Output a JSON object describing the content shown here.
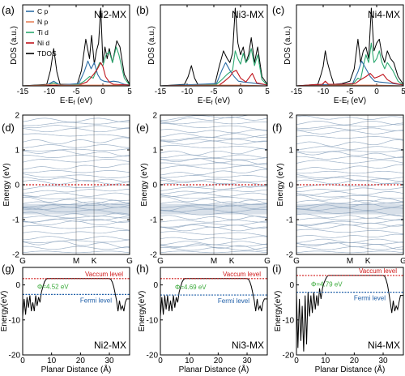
{
  "colors": {
    "c_p": "#2e6ea6",
    "n_p": "#e8825a",
    "ti_d": "#2ca870",
    "ni_d": "#c0141c",
    "tdos": "#000000",
    "bands": "#8ea6bf",
    "fermi_line": "#d01818",
    "vacuum": "#d01818",
    "phi": "#3aaa3a",
    "fermi_level": "#1f5fa8"
  },
  "chart_data": [
    {
      "panel": "(a)",
      "type": "line",
      "title": "Ni2-MX",
      "xlabel": "E-Ef (eV)",
      "ylabel": "DOS (a.u.)",
      "xlim": [
        -15,
        5
      ],
      "xticks": [
        -15,
        -10,
        -5,
        0,
        5
      ],
      "ylim": [
        0,
        1
      ],
      "legend": [
        "C p",
        "N p",
        "Ti d",
        "Ni d",
        "TDOS"
      ],
      "series": [
        {
          "name": "TDOS",
          "x": [
            -15,
            -10.5,
            -9.8,
            -9.2,
            -8.6,
            -8,
            -4.8,
            -4,
            -3.2,
            -2.5,
            -2.1,
            -1.6,
            -1.2,
            -0.8,
            -0.4,
            0,
            0.4,
            0.8,
            1.2,
            1.8,
            2.6,
            3.2,
            4,
            5
          ],
          "y": [
            0,
            0.02,
            0.2,
            0.48,
            0.18,
            0.02,
            0.02,
            0.2,
            0.6,
            0.35,
            0.65,
            0.28,
            0.45,
            0.55,
            1.0,
            0.3,
            0.5,
            0.35,
            0.48,
            0.3,
            0.58,
            0.5,
            0.15,
            0.02
          ]
        },
        {
          "name": "Ti d",
          "x": [
            -15,
            -10.5,
            -9.2,
            -8,
            -4.5,
            -3.5,
            -2.5,
            -1.8,
            -1.2,
            -0.6,
            0,
            0.6,
            1.2,
            1.8,
            2.5,
            3,
            4,
            5
          ],
          "y": [
            0,
            0.01,
            0.04,
            0.01,
            0.02,
            0.06,
            0.12,
            0.1,
            0.2,
            0.3,
            0.26,
            0.4,
            0.44,
            0.3,
            0.5,
            0.4,
            0.1,
            0.01
          ]
        },
        {
          "name": "C p",
          "x": [
            -15,
            -10.5,
            -9.2,
            -8,
            -4.5,
            -3.5,
            -2.8,
            -2.2,
            -1.6,
            -1,
            -0.4,
            0.2,
            1,
            2,
            3,
            4,
            5
          ],
          "y": [
            0,
            0.01,
            0.06,
            0.01,
            0.03,
            0.18,
            0.32,
            0.22,
            0.3,
            0.15,
            0.08,
            0.06,
            0.05,
            0.06,
            0.05,
            0.02,
            0.01
          ]
        },
        {
          "name": "Ni d",
          "x": [
            -15,
            -4.5,
            -3,
            -2.3,
            -1.6,
            -1,
            -0.4,
            0,
            0.5,
            1.2,
            2,
            5
          ],
          "y": [
            0,
            0.01,
            0.05,
            0.1,
            0.16,
            0.22,
            0.3,
            0.25,
            0.12,
            0.05,
            0.02,
            0.01
          ]
        },
        {
          "name": "N p",
          "x": [
            -15,
            -11,
            -9.2,
            -8,
            -4,
            -2,
            0,
            2,
            5
          ],
          "y": [
            0,
            0.01,
            0.02,
            0.01,
            0.01,
            0.01,
            0.01,
            0.01,
            0
          ]
        }
      ]
    },
    {
      "panel": "(b)",
      "type": "line",
      "title": "Ni3-MX",
      "xlabel": "E-Ef (eV)",
      "ylabel": "DOS (a.u.)",
      "xlim": [
        -15,
        5
      ],
      "xticks": [
        -15,
        -10,
        -5,
        0,
        5
      ],
      "ylim": [
        0,
        1
      ],
      "series": [
        {
          "name": "TDOS",
          "x": [
            -15,
            -10.5,
            -9.8,
            -9.2,
            -8.6,
            -8,
            -4.8,
            -4,
            -3.2,
            -2.5,
            -2,
            -1.5,
            -1,
            -0.5,
            0,
            0.5,
            1,
            1.5,
            2,
            2.6,
            3.2,
            4,
            5
          ],
          "y": [
            0,
            0.02,
            0.12,
            0.26,
            0.1,
            0.02,
            0.02,
            0.25,
            0.45,
            0.35,
            0.3,
            0.42,
            1.0,
            0.55,
            0.4,
            0.5,
            0.3,
            0.4,
            0.62,
            0.3,
            0.5,
            0.12,
            0.02
          ]
        },
        {
          "name": "Ti d",
          "x": [
            -15,
            -4.5,
            -3.5,
            -2.5,
            -1.5,
            -1,
            -0.5,
            0,
            0.5,
            1,
            1.5,
            2,
            2.6,
            3.2,
            4,
            5
          ],
          "y": [
            0,
            0.02,
            0.08,
            0.15,
            0.2,
            0.45,
            0.35,
            0.28,
            0.42,
            0.3,
            0.35,
            0.48,
            0.26,
            0.4,
            0.08,
            0.01
          ]
        },
        {
          "name": "C p",
          "x": [
            -15,
            -4.5,
            -3.5,
            -2.8,
            -2,
            -1.2,
            -0.4,
            0.5,
            2,
            5
          ],
          "y": [
            0,
            0.03,
            0.2,
            0.3,
            0.2,
            0.12,
            0.06,
            0.05,
            0.04,
            0.01
          ]
        },
        {
          "name": "Ni d",
          "x": [
            -15,
            -4,
            -3,
            -2,
            -1.4,
            -0.8,
            0,
            1,
            2.2,
            3,
            5
          ],
          "y": [
            0,
            0.01,
            0.06,
            0.12,
            0.18,
            0.2,
            0.1,
            0.05,
            0.16,
            0.04,
            0.01
          ]
        },
        {
          "name": "N p",
          "x": [
            -15,
            -4,
            0,
            5
          ],
          "y": [
            0,
            0.01,
            0.01,
            0
          ]
        }
      ]
    },
    {
      "panel": "(c)",
      "type": "line",
      "title": "Ni4-MX",
      "xlabel": "E-Ef (eV)",
      "ylabel": "DOS (a.u.)",
      "xlim": [
        -15,
        5
      ],
      "xticks": [
        -15,
        -10,
        -5,
        0,
        5
      ],
      "ylim": [
        0,
        1
      ],
      "series": [
        {
          "name": "TDOS",
          "x": [
            -15,
            -11,
            -10.4,
            -10,
            -9.6,
            -9.2,
            -8.6,
            -8,
            -6.5,
            -5,
            -4.2,
            -3.5,
            -3,
            -2.5,
            -2,
            -1.5,
            -1,
            -0.5,
            0,
            0.5,
            1,
            1.5,
            2,
            2.6,
            3.2,
            4,
            5
          ],
          "y": [
            0,
            0.02,
            0.15,
            0.25,
            0.45,
            0.3,
            0.15,
            0.02,
            0.03,
            0.06,
            0.22,
            0.6,
            0.3,
            0.45,
            0.5,
            0.35,
            1.0,
            0.45,
            0.55,
            0.6,
            0.4,
            0.3,
            0.45,
            0.35,
            0.3,
            0.12,
            0.02
          ]
        },
        {
          "name": "Ti d",
          "x": [
            -15,
            -4.5,
            -3.5,
            -3,
            -2.5,
            -2,
            -1.5,
            -1,
            -0.5,
            0,
            0.5,
            1,
            1.5,
            2,
            3,
            4,
            5
          ],
          "y": [
            0,
            0.02,
            0.1,
            0.08,
            0.25,
            0.4,
            0.3,
            0.55,
            0.3,
            0.35,
            0.45,
            0.3,
            0.22,
            0.3,
            0.2,
            0.06,
            0.01
          ]
        },
        {
          "name": "C p",
          "x": [
            -15,
            -4.5,
            -3.5,
            -2.8,
            -2,
            -1.2,
            -0.4,
            0.5,
            2,
            5
          ],
          "y": [
            0,
            0.03,
            0.18,
            0.32,
            0.22,
            0.12,
            0.06,
            0.05,
            0.04,
            0.01
          ]
        },
        {
          "name": "Ni d",
          "x": [
            -15,
            -10.2,
            -9.6,
            -9,
            -7,
            -4,
            -3,
            -2,
            -1.2,
            -0.4,
            0.4,
            1.2,
            2,
            3,
            5
          ],
          "y": [
            0,
            0.02,
            0.06,
            0.02,
            0.02,
            0.03,
            0.08,
            0.12,
            0.16,
            0.1,
            0.12,
            0.15,
            0.08,
            0.04,
            0.01
          ]
        },
        {
          "name": "N p",
          "x": [
            -15,
            -4,
            0,
            5
          ],
          "y": [
            0,
            0.01,
            0.01,
            0
          ]
        }
      ]
    },
    {
      "panel": "(d)",
      "type": "line",
      "ylabel": "Energy (eV)",
      "ylim": [
        -2,
        2
      ],
      "yticks": [
        -2,
        -1,
        0,
        1,
        2
      ],
      "kpoints": [
        "G",
        "M",
        "K",
        "G"
      ],
      "kpoint_positions": [
        0,
        0.5,
        0.667,
        1
      ],
      "fermi_level": 0,
      "band_energies": [
        -1.95,
        -1.85,
        -1.72,
        -1.6,
        -1.48,
        -1.35,
        -1.25,
        -1.15,
        -1.05,
        -0.98,
        -0.9,
        -0.83,
        -0.76,
        -0.7,
        -0.64,
        -0.58,
        -0.52,
        -0.45,
        -0.38,
        -0.28,
        -0.18,
        -0.08,
        0.05,
        0.15,
        0.28,
        0.4,
        0.52,
        0.65,
        0.78,
        0.9,
        1.02,
        1.15,
        1.28,
        1.4,
        1.52,
        1.65,
        1.78,
        1.9
      ]
    },
    {
      "panel": "(e)",
      "type": "line",
      "ylabel": "Energy (eV)",
      "ylim": [
        -2,
        2
      ],
      "yticks": [
        -2,
        -1,
        0,
        1,
        2
      ],
      "kpoints": [
        "G",
        "M",
        "K",
        "G"
      ],
      "kpoint_positions": [
        0,
        0.5,
        0.667,
        1
      ],
      "fermi_level": 0,
      "band_energies": [
        -1.95,
        -1.88,
        -1.8,
        -1.72,
        -1.62,
        -1.52,
        -1.42,
        -1.32,
        -1.22,
        -1.12,
        -1.02,
        -0.92,
        -0.84,
        -0.76,
        -0.68,
        -0.6,
        -0.52,
        -0.44,
        -0.36,
        -0.28,
        -0.2,
        -0.12,
        -0.04,
        0.06,
        0.16,
        0.26,
        0.36,
        0.46,
        0.56,
        0.66,
        0.76,
        0.86,
        0.96,
        1.06,
        1.16,
        1.26,
        1.36,
        1.46,
        1.56,
        1.66,
        1.76,
        1.86,
        1.95
      ]
    },
    {
      "panel": "(f)",
      "type": "line",
      "ylabel": "Energy (eV)",
      "ylim": [
        -2,
        2
      ],
      "yticks": [
        -2,
        -1,
        0,
        1,
        2
      ],
      "kpoints": [
        "G",
        "M",
        "K",
        "G"
      ],
      "kpoint_positions": [
        0,
        0.5,
        0.667,
        1
      ],
      "fermi_level": 0,
      "band_energies": [
        -1.95,
        -1.86,
        -1.76,
        -1.66,
        -1.56,
        -1.46,
        -1.36,
        -1.26,
        -1.16,
        -1.06,
        -0.96,
        -0.88,
        -0.8,
        -0.72,
        -0.64,
        -0.56,
        -0.48,
        -0.4,
        -0.32,
        -0.24,
        -0.14,
        -0.04,
        0.06,
        0.16,
        0.26,
        0.38,
        0.5,
        0.62,
        0.74,
        0.86,
        0.98,
        1.1,
        1.22,
        1.34,
        1.46,
        1.58,
        1.7,
        1.82,
        1.94
      ]
    },
    {
      "panel": "(g)",
      "type": "line",
      "title": "Ni2-MX",
      "xlabel": "Planar Distance (Å)",
      "ylabel": "Energy(eV)",
      "xlim": [
        0,
        37
      ],
      "xticks": [
        0,
        10,
        20,
        30
      ],
      "ylim": [
        -20,
        5
      ],
      "yticks": [
        -20,
        -10,
        0
      ],
      "vacuum_level": 1.8,
      "fermi_level": -2.72,
      "vacuum_label": "Vaccum level",
      "fermi_label": "Fermi level",
      "phi_label": "Φ=4.52 eV",
      "potential": {
        "x": [
          0,
          0.5,
          1,
          1.5,
          2,
          2.5,
          3,
          3.5,
          4,
          4.5,
          5,
          5.5,
          6,
          6.5,
          7,
          7.5,
          8,
          8.5,
          30,
          30.5,
          31,
          31.5,
          32,
          32.5,
          33,
          33.5,
          34,
          34.5,
          35,
          35.5,
          36,
          37
        ],
        "y": [
          -9,
          -4,
          -8.5,
          -3.5,
          -6.5,
          -3,
          -7.5,
          -5,
          -7.5,
          -3,
          -6,
          -3.5,
          -5,
          -2,
          -0.5,
          0.8,
          1.5,
          1.8,
          1.8,
          1.6,
          0.8,
          -0.5,
          -2.5,
          -4.5,
          -7.5,
          -4.5,
          -7,
          -6,
          -7.5,
          -5,
          -4,
          -4
        ]
      }
    },
    {
      "panel": "(h)",
      "type": "line",
      "title": "Ni3-MX",
      "xlabel": "Planar Distance (Å)",
      "ylabel": "Energy(eV)",
      "xlim": [
        0,
        37
      ],
      "xticks": [
        0,
        10,
        20,
        30
      ],
      "ylim": [
        -20,
        5
      ],
      "yticks": [
        -20,
        -10,
        0
      ],
      "vacuum_level": 1.8,
      "fermi_level": -2.89,
      "vacuum_label": "Vaccum level",
      "fermi_label": "Fermi level",
      "phi_label": "Φ=4.69 eV",
      "potential": {
        "x": [
          0,
          0.5,
          1,
          1.5,
          2,
          2.5,
          3,
          3.5,
          4,
          4.5,
          5,
          5.5,
          6,
          6.5,
          7,
          7.5,
          8,
          8.5,
          30,
          30.5,
          31,
          31.5,
          32,
          32.5,
          33,
          33.5,
          34,
          34.5,
          35,
          35.5,
          36,
          37
        ],
        "y": [
          -9,
          -3.5,
          -8.5,
          -3,
          -7,
          -3,
          -7.5,
          -4.5,
          -7.5,
          -3,
          -6.5,
          -3.5,
          -5,
          -2,
          -0.5,
          0.8,
          1.5,
          1.8,
          1.8,
          1.6,
          0.8,
          -0.5,
          -2.5,
          -4.5,
          -7.5,
          -4,
          -7,
          -6,
          -7.5,
          -5,
          -4,
          -4
        ]
      }
    },
    {
      "panel": "(i)",
      "type": "line",
      "title": "Ni4-MX",
      "xlabel": "Planar Distance (Å)",
      "ylabel": "Energy(eV)",
      "xlim": [
        0,
        37
      ],
      "xticks": [
        0,
        10,
        20,
        30
      ],
      "ylim": [
        -20,
        5
      ],
      "yticks": [
        -20,
        -10,
        0
      ],
      "vacuum_level": 2.7,
      "fermi_level": -2.09,
      "vacuum_label": "Vaccum level",
      "fermi_label": "Fermi level",
      "phi_label": "Φ=4.79 eV",
      "potential": {
        "x": [
          0,
          0.5,
          1,
          1.5,
          2,
          2.5,
          3,
          3.5,
          4,
          4.5,
          5,
          5.5,
          6,
          6.5,
          7,
          7.5,
          8,
          8.5,
          9,
          9.5,
          10,
          10.5,
          11,
          30,
          30.5,
          31,
          31.5,
          32,
          32.5,
          33,
          33.5,
          34,
          34.5,
          35,
          35.5,
          36,
          37
        ],
        "y": [
          -2,
          -18,
          -4,
          -16,
          -6,
          -19,
          -3,
          -17,
          -2,
          -9,
          -3,
          -8,
          -2,
          -7,
          -3,
          -6,
          -1,
          -4,
          -1,
          0.5,
          1.5,
          2.3,
          2.7,
          2.7,
          2.5,
          1.5,
          0,
          -2.5,
          -5,
          -8,
          -4.5,
          -7.5,
          -6,
          -7,
          -5,
          -3,
          -3
        ]
      }
    }
  ]
}
